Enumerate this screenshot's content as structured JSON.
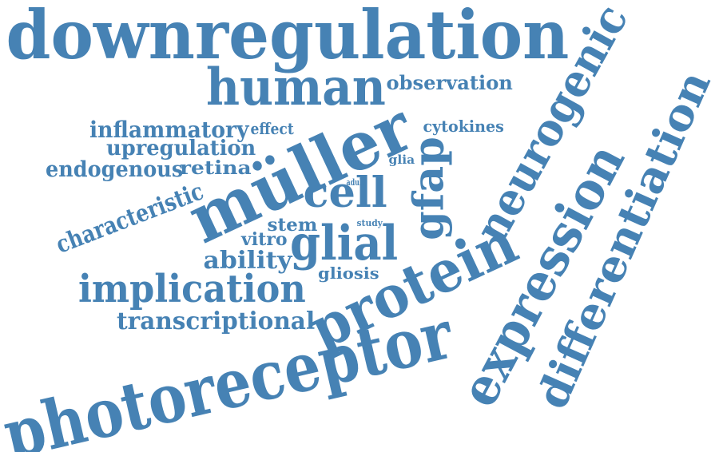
{
  "word_color": "#4682b4",
  "background": "#ffffff",
  "words": [
    {
      "text": "downregulation"
    },
    {
      "text": "human"
    },
    {
      "text": "observation"
    },
    {
      "text": "neurogenic"
    },
    {
      "text": "differentiation"
    },
    {
      "text": "expression"
    },
    {
      "text": "photoreceptor"
    },
    {
      "text": "müller"
    },
    {
      "text": "protein"
    },
    {
      "text": "cell"
    },
    {
      "text": "glial"
    },
    {
      "text": "gfap"
    },
    {
      "text": "implication"
    },
    {
      "text": "transcriptional"
    },
    {
      "text": "inflammatory"
    },
    {
      "text": "effect"
    },
    {
      "text": "upregulation"
    },
    {
      "text": "endogenous"
    },
    {
      "text": "retina"
    },
    {
      "text": "characteristic"
    },
    {
      "text": "cytokines"
    },
    {
      "text": "glia"
    },
    {
      "text": "adult"
    },
    {
      "text": "stem"
    },
    {
      "text": "study"
    },
    {
      "text": "vitro"
    },
    {
      "text": "ability"
    },
    {
      "text": "gliosis"
    }
  ]
}
